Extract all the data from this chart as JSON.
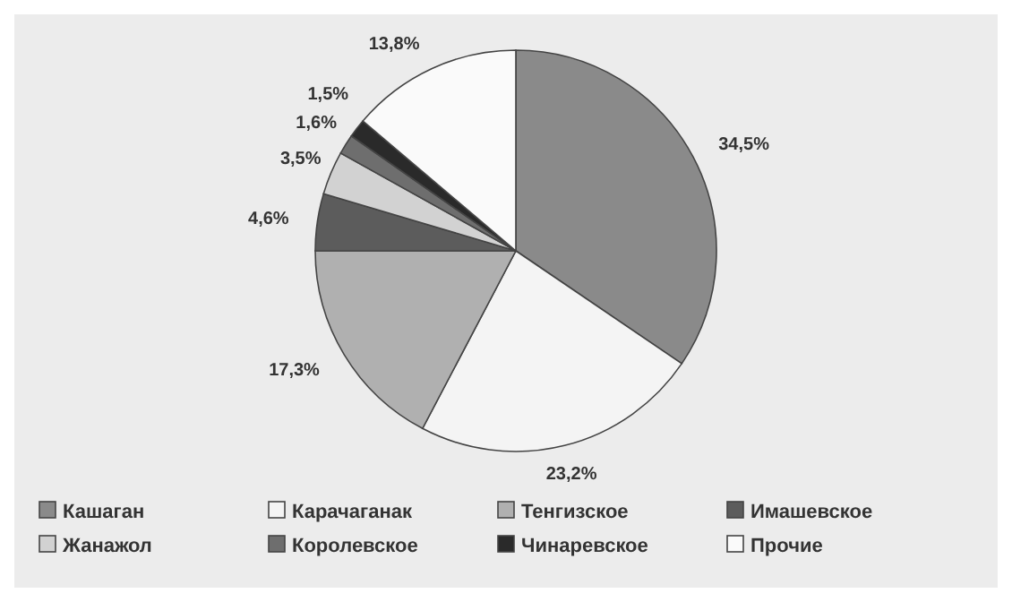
{
  "chart_data": {
    "type": "pie",
    "categories": [
      "Кашаган",
      "Карачаганак",
      "Тенгизское",
      "Имашевское",
      "Жанажол",
      "Королевское",
      "Чинаревское",
      "Прочие"
    ],
    "values": [
      34.5,
      23.2,
      17.3,
      4.6,
      3.5,
      1.6,
      1.5,
      13.8
    ],
    "value_labels": [
      "34,5%",
      "23,2%",
      "17,3%",
      "4,6%",
      "3,5%",
      "1,6%",
      "1,5%",
      "13,8%"
    ],
    "colors": [
      "#8a8a8a",
      "#f4f4f4",
      "#b0b0b0",
      "#5c5c5c",
      "#d2d2d2",
      "#6e6e6e",
      "#2a2a2a",
      "#fafafa"
    ],
    "legend": "bottom"
  }
}
